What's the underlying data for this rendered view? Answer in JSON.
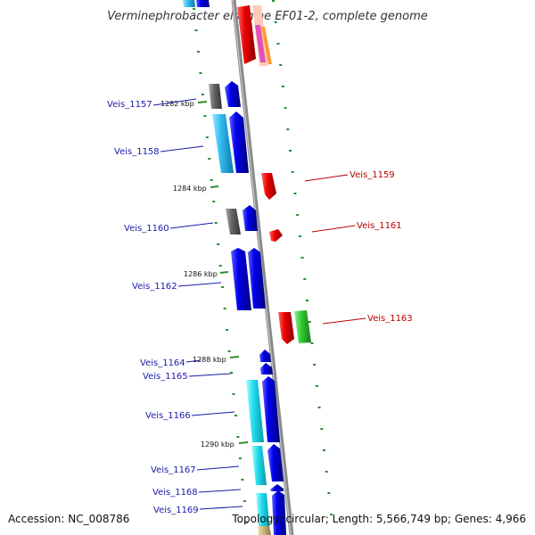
{
  "header": {
    "title": "Verminephrobacter eiseniae EF01-2, complete genome"
  },
  "footer": {
    "accession": "Accession: NC_008786",
    "topology": "Topology: circular; Length: 5,566,749 bp; Genes: 4,966"
  },
  "kbp_labels": [
    "1282 kbp",
    "1284 kbp",
    "1286 kbp",
    "1288 kbp",
    "1290 kbp"
  ],
  "genes_left": [
    "Veis_1157",
    "Veis_1158",
    "Veis_1160",
    "Veis_1162",
    "Veis_1164",
    "Veis_1165",
    "Veis_1166",
    "Veis_1167",
    "Veis_1168",
    "Veis_1169"
  ],
  "genes_right": [
    "Veis_1159",
    "Veis_1161",
    "Veis_1163"
  ],
  "colors": {
    "backbone": "#8a8a8a",
    "label_blue": "#1a1aaa",
    "label_red": "#bb0000",
    "tick_green": "#2e8b2e",
    "cds_blue": "#0000ee",
    "cds_cyan": "#33bbee",
    "cds_red": "#ee0000",
    "cds_green": "#33cc33",
    "cds_gray": "#666666",
    "cds_tan": "#c8b070"
  }
}
